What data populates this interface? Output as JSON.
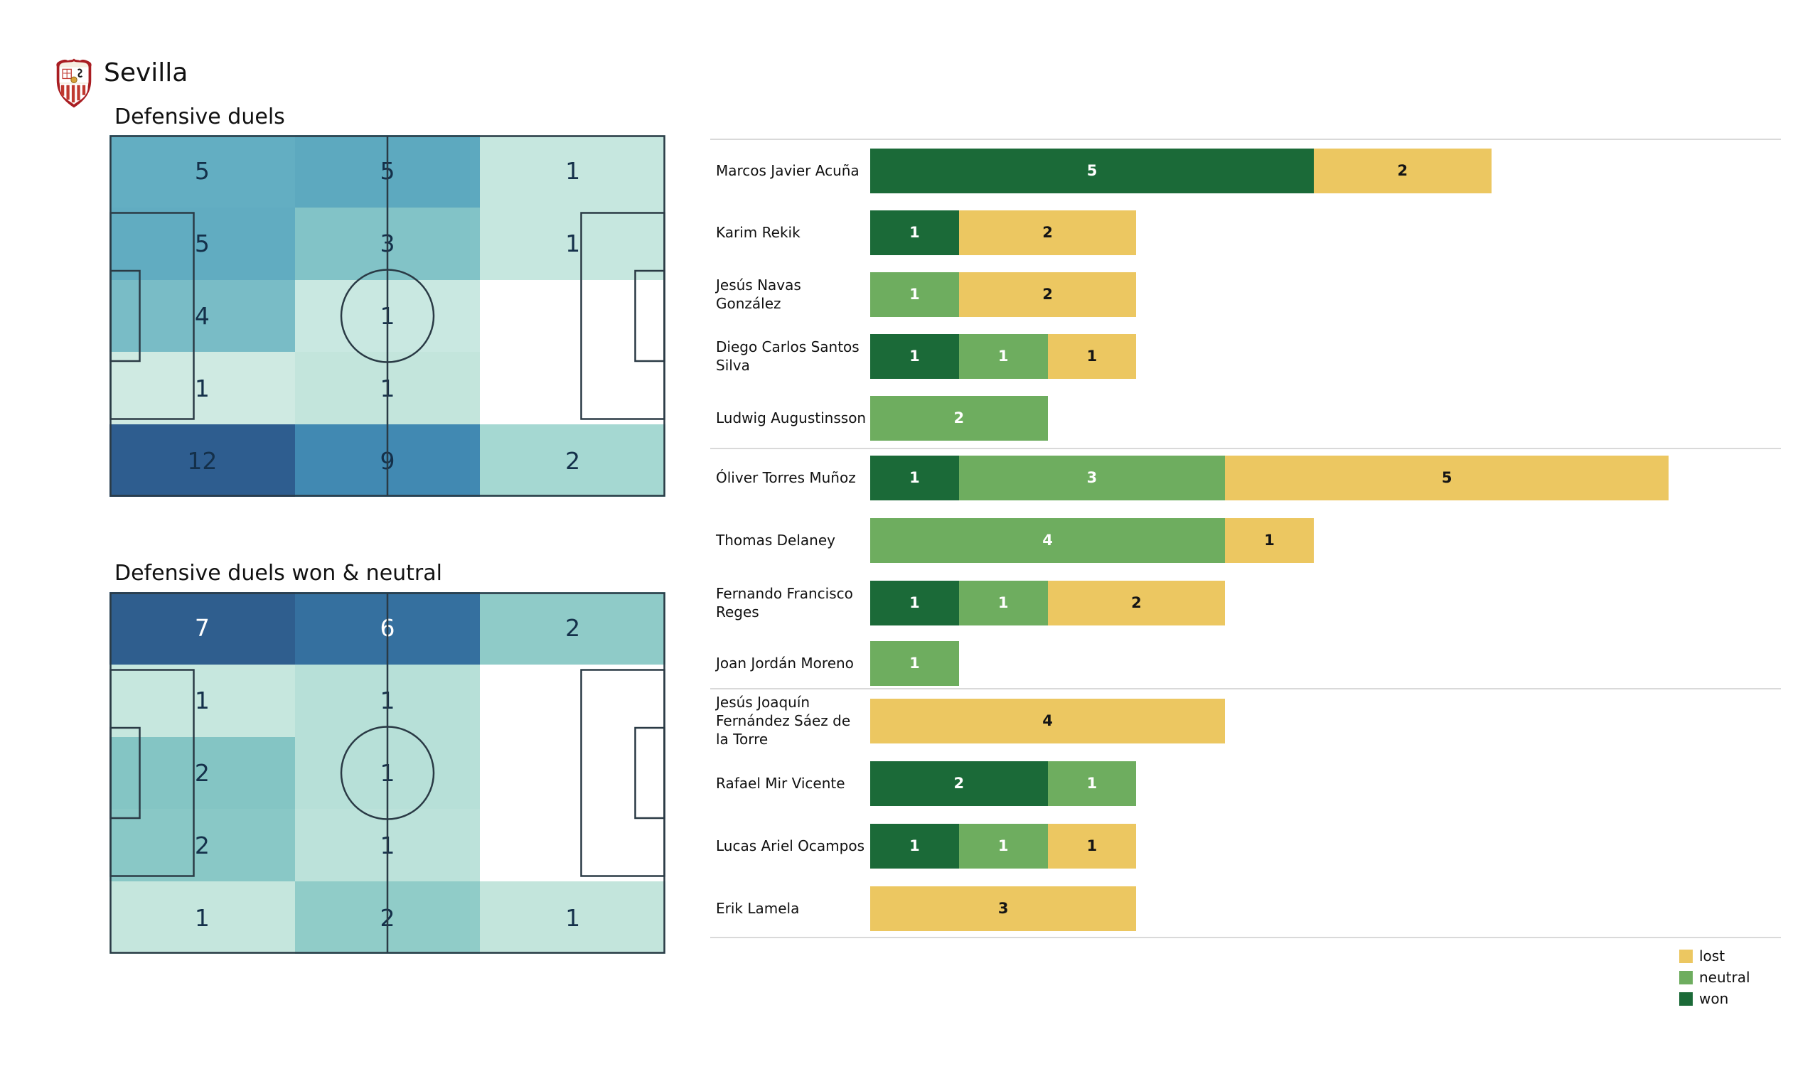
{
  "page": {
    "team": "Sevilla"
  },
  "pitches": [
    {
      "title": "Defensive duels",
      "cells": [
        {
          "value": "5",
          "bg": "#63aec2",
          "fg": "dark"
        },
        {
          "value": "5",
          "bg": "#5da9bf",
          "fg": "dark"
        },
        {
          "value": "1",
          "bg": "#c6e7df",
          "fg": "dark"
        },
        {
          "value": "5",
          "bg": "#61acc1",
          "fg": "dark"
        },
        {
          "value": "3",
          "bg": "#82c3c7",
          "fg": "dark"
        },
        {
          "value": "1",
          "bg": "#c6e7df",
          "fg": "dark"
        },
        {
          "value": "4",
          "bg": "#79bcc6",
          "fg": "dark"
        },
        {
          "value": "1",
          "bg": "#c9e8e1",
          "fg": "dark"
        },
        {
          "value": "",
          "bg": "#ffffff",
          "fg": "dark"
        },
        {
          "value": "1",
          "bg": "#cfeae2",
          "fg": "dark"
        },
        {
          "value": "1",
          "bg": "#c3e5dc",
          "fg": "dark"
        },
        {
          "value": "",
          "bg": "#ffffff",
          "fg": "dark"
        },
        {
          "value": "12",
          "bg": "#2e5d8f",
          "fg": "dark"
        },
        {
          "value": "9",
          "bg": "#4189b2",
          "fg": "dark"
        },
        {
          "value": "2",
          "bg": "#a5d8d2",
          "fg": "dark"
        }
      ]
    },
    {
      "title": "Defensive duels won & neutral",
      "cells": [
        {
          "value": "7",
          "bg": "#2f5e8e",
          "fg": "white"
        },
        {
          "value": "6",
          "bg": "#35709f",
          "fg": "white"
        },
        {
          "value": "2",
          "bg": "#8fcbc8",
          "fg": "dark"
        },
        {
          "value": "1",
          "bg": "#c6e7de",
          "fg": "dark"
        },
        {
          "value": "1",
          "bg": "#b7e0d8",
          "fg": "dark"
        },
        {
          "value": "",
          "bg": "#ffffff",
          "fg": "dark"
        },
        {
          "value": "2",
          "bg": "#84c5c4",
          "fg": "dark"
        },
        {
          "value": "1",
          "bg": "#b7e0d8",
          "fg": "dark"
        },
        {
          "value": "",
          "bg": "#ffffff",
          "fg": "dark"
        },
        {
          "value": "2",
          "bg": "#89c8c6",
          "fg": "dark"
        },
        {
          "value": "1",
          "bg": "#bce2da",
          "fg": "dark"
        },
        {
          "value": "",
          "bg": "#ffffff",
          "fg": "dark"
        },
        {
          "value": "1",
          "bg": "#c5e6dd",
          "fg": "dark"
        },
        {
          "value": "2",
          "bg": "#90ccc8",
          "fg": "dark"
        },
        {
          "value": "1",
          "bg": "#c3e5dc",
          "fg": "dark"
        }
      ]
    }
  ],
  "result_colors": {
    "won": "#1b6a38",
    "neutral": "#6ead5f",
    "lost": "#ecc761"
  },
  "bar_chart": {
    "groups": [
      {
        "players": [
          {
            "name": "Marcos Javier Acuña",
            "segments": [
              {
                "result": "won",
                "value": 5
              },
              {
                "result": "lost",
                "value": 2
              }
            ]
          },
          {
            "name": "Karim Rekik",
            "segments": [
              {
                "result": "won",
                "value": 1
              },
              {
                "result": "lost",
                "value": 2
              }
            ]
          },
          {
            "name": "Jesús Navas González",
            "segments": [
              {
                "result": "neutral",
                "value": 1
              },
              {
                "result": "lost",
                "value": 2
              }
            ]
          },
          {
            "name": "Diego Carlos Santos Silva",
            "segments": [
              {
                "result": "won",
                "value": 1
              },
              {
                "result": "neutral",
                "value": 1
              },
              {
                "result": "lost",
                "value": 1
              }
            ]
          },
          {
            "name": "Ludwig Augustinsson",
            "segments": [
              {
                "result": "neutral",
                "value": 2
              }
            ]
          }
        ]
      },
      {
        "players": [
          {
            "name": "Óliver Torres Muñoz",
            "segments": [
              {
                "result": "won",
                "value": 1
              },
              {
                "result": "neutral",
                "value": 3
              },
              {
                "result": "lost",
                "value": 5
              }
            ]
          },
          {
            "name": "Thomas Delaney",
            "segments": [
              {
                "result": "neutral",
                "value": 4
              },
              {
                "result": "lost",
                "value": 1
              }
            ]
          },
          {
            "name": "Fernando Francisco Reges",
            "segments": [
              {
                "result": "won",
                "value": 1
              },
              {
                "result": "neutral",
                "value": 1
              },
              {
                "result": "lost",
                "value": 2
              }
            ]
          },
          {
            "name": "Joan Jordán Moreno",
            "segments": [
              {
                "result": "neutral",
                "value": 1
              }
            ]
          }
        ]
      },
      {
        "players": [
          {
            "name": "Jesús Joaquín Fernández Sáez de la Torre",
            "segments": [
              {
                "result": "lost",
                "value": 4
              }
            ]
          },
          {
            "name": "Rafael Mir Vicente",
            "segments": [
              {
                "result": "won",
                "value": 2
              },
              {
                "result": "neutral",
                "value": 1
              }
            ]
          },
          {
            "name": "Lucas Ariel Ocampos",
            "segments": [
              {
                "result": "won",
                "value": 1
              },
              {
                "result": "neutral",
                "value": 1
              },
              {
                "result": "lost",
                "value": 1
              }
            ]
          },
          {
            "name": "Erik Lamela",
            "segments": [
              {
                "result": "lost",
                "value": 3
              }
            ]
          }
        ]
      }
    ]
  },
  "legend": {
    "items": [
      {
        "label": "lost",
        "color": "#ecc761"
      },
      {
        "label": "neutral",
        "color": "#6ead5f"
      },
      {
        "label": "won",
        "color": "#1b6a38"
      }
    ]
  },
  "chart_data": [
    {
      "type": "heatmap",
      "title": "Defensive duels",
      "rows": 5,
      "cols": 3,
      "values": [
        [
          5,
          5,
          1
        ],
        [
          5,
          3,
          1
        ],
        [
          4,
          1,
          0
        ],
        [
          1,
          1,
          0
        ],
        [
          12,
          9,
          2
        ]
      ],
      "note_layout": "soccer pitch positional grid, goals left and right"
    },
    {
      "type": "heatmap",
      "title": "Defensive duels won & neutral",
      "rows": 5,
      "cols": 3,
      "values": [
        [
          7,
          6,
          2
        ],
        [
          1,
          1,
          0
        ],
        [
          2,
          1,
          0
        ],
        [
          2,
          1,
          0
        ],
        [
          1,
          2,
          1
        ]
      ],
      "note_layout": "soccer pitch positional grid, goals left and right"
    },
    {
      "type": "bar",
      "subtype": "horizontal-stacked",
      "categories": [
        "Marcos Javier Acuña",
        "Karim Rekik",
        "Jesús Navas González",
        "Diego Carlos Santos Silva",
        "Ludwig Augustinsson",
        "Óliver Torres Muñoz",
        "Thomas Delaney",
        "Fernando Francisco Reges",
        "Joan Jordán Moreno",
        "Jesús Joaquín Fernández Sáez de la Torre",
        "Rafael Mir Vicente",
        "Lucas Ariel Ocampos",
        "Erik Lamela"
      ],
      "series": [
        {
          "name": "won",
          "color": "#1b6a38",
          "values": [
            5,
            1,
            0,
            1,
            0,
            1,
            0,
            1,
            0,
            0,
            2,
            1,
            0
          ]
        },
        {
          "name": "neutral",
          "color": "#6ead5f",
          "values": [
            0,
            0,
            1,
            1,
            2,
            3,
            4,
            1,
            1,
            0,
            1,
            1,
            0
          ]
        },
        {
          "name": "lost",
          "color": "#ecc761",
          "values": [
            2,
            2,
            2,
            1,
            0,
            5,
            1,
            2,
            0,
            4,
            0,
            1,
            3
          ]
        }
      ],
      "xlim": [
        0,
        9.9
      ],
      "legend_position": "bottom-right",
      "grid": false,
      "group_separators_after": [
        "Ludwig Augustinsson",
        "Joan Jordán Moreno",
        "Erik Lamela"
      ]
    }
  ]
}
